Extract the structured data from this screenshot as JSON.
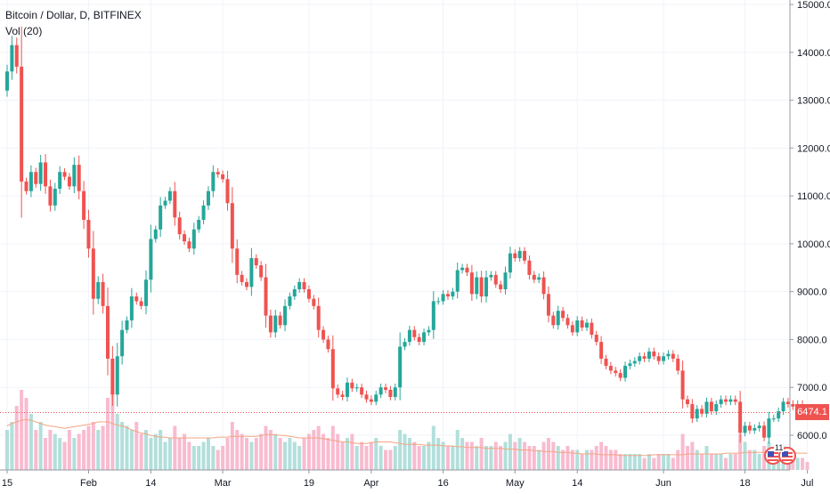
{
  "legend": {
    "symbol_line": "Bitcoin / Dollar, D, BITFINEX",
    "volume_line": "Vol (20)"
  },
  "price_axis": {
    "labels": [
      "6000.0",
      "7000.0",
      "8000.0",
      "9000.0",
      "10000.0",
      "11000.0",
      "12000.0",
      "13000.0",
      "14000.0",
      "15000.0"
    ]
  },
  "time_axis": {
    "labels": [
      {
        "text": "15",
        "day": 0
      },
      {
        "text": "Feb",
        "day": 17
      },
      {
        "text": "14",
        "day": 30
      },
      {
        "text": "Mar",
        "day": 45
      },
      {
        "text": "19",
        "day": 63
      },
      {
        "text": "Apr",
        "day": 76
      },
      {
        "text": "16",
        "day": 91
      },
      {
        "text": "May",
        "day": 106
      },
      {
        "text": "14",
        "day": 119
      },
      {
        "text": "Jun",
        "day": 137
      },
      {
        "text": "18",
        "day": 154
      },
      {
        "text": "Jul",
        "day": 167
      }
    ]
  },
  "last_price": {
    "label": "6474.1",
    "value": 6474.1
  },
  "events": {
    "count": "11"
  },
  "colors": {
    "up": "#26a69a",
    "down": "#ef5350",
    "vol_up": "#b2dfdb",
    "vol_down": "#f8bbd0",
    "vol_ma": "#f4a582",
    "grid": "#f0f3fa",
    "axis_text": "#131722"
  },
  "chart_data": {
    "type": "candlestick",
    "title": "Bitcoin / Dollar, D, BITFINEX",
    "interval": "1D",
    "y_range": [
      5250,
      15000
    ],
    "x_start_day_index": 0,
    "closes": [
      13600,
      14150,
      13700,
      11300,
      11100,
      11500,
      11250,
      11700,
      11200,
      10800,
      11150,
      11500,
      11400,
      11200,
      11650,
      11100,
      10500,
      9900,
      8850,
      9200,
      8700,
      7600,
      6850,
      7650,
      8200,
      8400,
      8900,
      8800,
      8700,
      9250,
      10100,
      10300,
      10800,
      10900,
      11100,
      10550,
      10200,
      10050,
      9900,
      10300,
      10500,
      10800,
      11100,
      11500,
      11450,
      11350,
      10850,
      9900,
      9350,
      9200,
      9100,
      9700,
      9550,
      9300,
      8500,
      8150,
      8500,
      8300,
      8700,
      8900,
      9050,
      9200,
      9050,
      8850,
      8700,
      8200,
      8000,
      7800,
      6980,
      6850,
      6800,
      7100,
      6980,
      7000,
      6850,
      6750,
      6700,
      6850,
      7000,
      6950,
      6800,
      7000,
      7850,
      7950,
      8200,
      8050,
      7950,
      8150,
      8200,
      8800,
      8800,
      8950,
      8900,
      9000,
      9450,
      9500,
      9400,
      8950,
      9300,
      8900,
      9300,
      9350,
      9150,
      9050,
      9400,
      9800,
      9700,
      9850,
      9650,
      9350,
      9250,
      9300,
      8950,
      8500,
      8300,
      8600,
      8450,
      8300,
      8150,
      8400,
      8250,
      8350,
      8100,
      7950,
      7600,
      7450,
      7350,
      7300,
      7200,
      7450,
      7500,
      7550,
      7650,
      7600,
      7750,
      7650,
      7550,
      7650,
      7700,
      7600,
      7350,
      6750,
      6650,
      6350,
      6550,
      6450,
      6700,
      6500,
      6650,
      6750,
      6700,
      6750,
      6700,
      6050,
      6200,
      6100,
      6150,
      6200,
      5950,
      6350,
      6350,
      6500,
      6700,
      6650,
      6600,
      6650,
      6550,
      6474.1
    ],
    "volumes": [
      0.5,
      0.6,
      0.8,
      1.0,
      0.9,
      0.7,
      0.5,
      0.6,
      0.4,
      0.5,
      0.45,
      0.4,
      0.35,
      0.5,
      0.4,
      0.45,
      0.5,
      0.55,
      0.6,
      0.5,
      0.55,
      0.9,
      1.0,
      0.7,
      0.6,
      0.55,
      0.5,
      0.6,
      0.45,
      0.5,
      0.4,
      0.45,
      0.5,
      0.35,
      0.4,
      0.55,
      0.4,
      0.45,
      0.35,
      0.3,
      0.3,
      0.35,
      0.4,
      0.3,
      0.25,
      0.3,
      0.4,
      0.6,
      0.5,
      0.45,
      0.4,
      0.35,
      0.4,
      0.45,
      0.55,
      0.5,
      0.45,
      0.4,
      0.35,
      0.4,
      0.35,
      0.3,
      0.4,
      0.45,
      0.5,
      0.55,
      0.45,
      0.4,
      0.55,
      0.45,
      0.35,
      0.4,
      0.45,
      0.3,
      0.35,
      0.3,
      0.35,
      0.4,
      0.3,
      0.25,
      0.25,
      0.3,
      0.5,
      0.45,
      0.4,
      0.35,
      0.3,
      0.3,
      0.35,
      0.55,
      0.4,
      0.35,
      0.3,
      0.3,
      0.5,
      0.4,
      0.35,
      0.35,
      0.3,
      0.4,
      0.3,
      0.3,
      0.35,
      0.3,
      0.35,
      0.45,
      0.35,
      0.4,
      0.35,
      0.3,
      0.3,
      0.25,
      0.35,
      0.4,
      0.35,
      0.3,
      0.25,
      0.3,
      0.25,
      0.25,
      0.2,
      0.25,
      0.25,
      0.3,
      0.35,
      0.3,
      0.25,
      0.25,
      0.2,
      0.2,
      0.2,
      0.2,
      0.2,
      0.15,
      0.2,
      0.15,
      0.2,
      0.2,
      0.2,
      0.15,
      0.25,
      0.45,
      0.3,
      0.35,
      0.25,
      0.2,
      0.3,
      0.2,
      0.2,
      0.2,
      0.15,
      0.2,
      0.2,
      0.45,
      0.35,
      0.25,
      0.25,
      0.2,
      0.3,
      0.35,
      0.25,
      0.25,
      0.3,
      0.2,
      0.15,
      0.15,
      0.15,
      0.1
    ],
    "volume_ma": [
      0.55,
      0.58,
      0.6,
      0.62,
      0.63,
      0.62,
      0.6,
      0.58,
      0.56,
      0.55,
      0.54,
      0.53,
      0.52,
      0.53,
      0.54,
      0.55,
      0.56,
      0.57,
      0.58,
      0.6,
      0.6,
      0.6,
      0.58,
      0.56,
      0.55,
      0.53,
      0.5,
      0.48,
      0.46,
      0.45,
      0.43,
      0.42,
      0.41,
      0.41,
      0.4,
      0.4,
      0.4,
      0.4,
      0.4,
      0.4,
      0.4,
      0.4,
      0.4,
      0.4,
      0.41,
      0.41,
      0.41,
      0.42,
      0.42,
      0.42,
      0.42,
      0.42,
      0.42,
      0.43,
      0.44,
      0.44,
      0.44,
      0.43,
      0.43,
      0.42,
      0.41,
      0.4,
      0.4,
      0.4,
      0.4,
      0.4,
      0.39,
      0.38,
      0.37,
      0.36,
      0.35,
      0.35,
      0.34,
      0.33,
      0.33,
      0.33,
      0.34,
      0.35,
      0.35,
      0.35,
      0.35,
      0.34,
      0.33,
      0.32,
      0.32,
      0.32,
      0.32,
      0.31,
      0.31,
      0.31,
      0.31,
      0.3,
      0.3,
      0.3,
      0.29,
      0.29,
      0.28,
      0.28,
      0.28,
      0.28,
      0.27,
      0.27,
      0.27,
      0.27,
      0.26,
      0.26,
      0.26,
      0.25,
      0.25,
      0.25,
      0.24,
      0.24,
      0.23,
      0.23,
      0.23,
      0.22,
      0.22,
      0.22,
      0.21,
      0.21,
      0.2,
      0.2,
      0.2,
      0.2,
      0.19,
      0.19,
      0.19,
      0.19,
      0.18,
      0.18,
      0.18,
      0.18,
      0.18,
      0.18,
      0.18,
      0.19,
      0.19,
      0.19,
      0.19,
      0.19,
      0.19,
      0.19,
      0.2,
      0.2,
      0.2,
      0.2,
      0.2,
      0.2,
      0.2,
      0.2,
      0.21,
      0.21,
      0.21,
      0.21,
      0.22,
      0.22,
      0.22,
      0.22,
      0.22,
      0.22,
      0.22,
      0.22,
      0.22,
      0.22,
      0.22,
      0.21,
      0.21,
      0.21
    ],
    "volume_scale": "relative (0–1)"
  }
}
